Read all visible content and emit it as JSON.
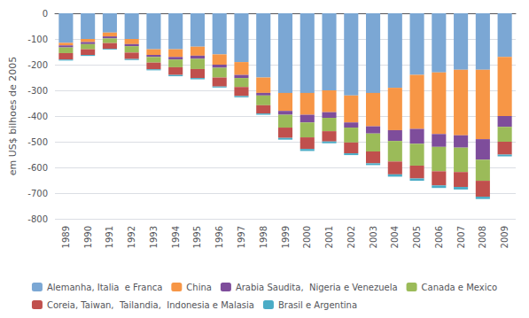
{
  "chart_data": {
    "type": "bar",
    "stacked": true,
    "grid": true,
    "legend": "bottom",
    "ylabel": "em US$ bilhoes de 2005",
    "categories": [
      1989,
      1990,
      1991,
      1992,
      1993,
      1994,
      1995,
      1996,
      1997,
      1998,
      1999,
      2000,
      2001,
      2002,
      2003,
      2004,
      2005,
      2006,
      2007,
      2008,
      2009
    ],
    "ylim": [
      -800,
      0
    ],
    "yticks": [
      0,
      -100,
      -200,
      -300,
      -400,
      -500,
      -600,
      -700,
      -800
    ],
    "series": [
      {
        "name": "Alemanha, Italia  e Franca",
        "color": "#7BA7D4",
        "values": [
          -115,
          -100,
          -75,
          -100,
          -140,
          -140,
          -130,
          -160,
          -190,
          -250,
          -310,
          -310,
          -300,
          -320,
          -310,
          -290,
          -240,
          -230,
          -220,
          -220,
          -170
        ]
      },
      {
        "name": "China",
        "color": "#F79646",
        "values": [
          -10,
          -12,
          -15,
          -20,
          -22,
          -30,
          -35,
          -40,
          -50,
          -60,
          -70,
          -85,
          -85,
          -105,
          -130,
          -165,
          -210,
          -240,
          -255,
          -270,
          -230
        ]
      },
      {
        "name": "Arabia Saudita,  Nigeria e Venezuela",
        "color": "#7E4D9B",
        "values": [
          -8,
          -8,
          -8,
          -8,
          -8,
          -10,
          -12,
          -12,
          -12,
          -10,
          -15,
          -30,
          -22,
          -20,
          -28,
          -42,
          -58,
          -50,
          -48,
          -80,
          -42
        ]
      },
      {
        "name": "Canada e Mexico",
        "color": "#9BBB59",
        "values": [
          -22,
          -20,
          -18,
          -25,
          -22,
          -30,
          -40,
          -38,
          -35,
          -38,
          -50,
          -58,
          -52,
          -58,
          -70,
          -80,
          -85,
          -95,
          -95,
          -82,
          -58
        ]
      },
      {
        "name": "Coreia, Taiwan,  Tailandia,  Indonesia e Malasia",
        "color": "#C0504D",
        "values": [
          -25,
          -22,
          -22,
          -25,
          -26,
          -30,
          -35,
          -35,
          -35,
          -32,
          -40,
          -45,
          -40,
          -42,
          -46,
          -50,
          -50,
          -55,
          -58,
          -62,
          -50
        ]
      },
      {
        "name": "Brasil e Argentina",
        "color": "#4BACC6",
        "values": [
          -4,
          -4,
          -3,
          -4,
          -4,
          -5,
          -5,
          -4,
          -5,
          -5,
          -7,
          -8,
          -7,
          -7,
          -7,
          -9,
          -9,
          -10,
          -10,
          -9,
          -7
        ]
      }
    ]
  }
}
